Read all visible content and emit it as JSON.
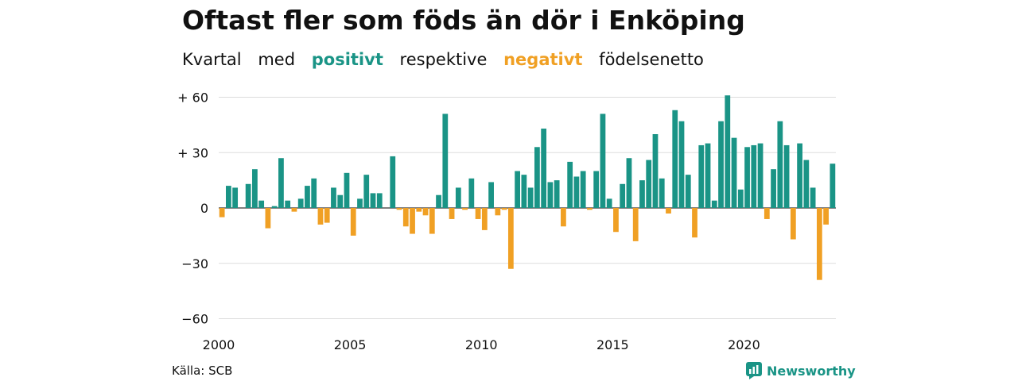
{
  "title": "Oftast fler som föds än dör i Enköping",
  "subtitle": {
    "w1": "Kvartal",
    "w2": "med",
    "positive": "positivt",
    "w3": "respektive",
    "negative": "negativt",
    "w4": "födelsenetto"
  },
  "source": "Källa: SCB",
  "brand": "Newsworthy",
  "colors": {
    "positive": "#1a9486",
    "negative": "#f0a024",
    "grid": "#dddddd"
  },
  "chart_data": {
    "type": "bar",
    "title": "Oftast fler som föds än dör i Enköping",
    "subtitle": "Kvartal med positivt respektive negativt födelsenetto",
    "x_start_year": 2000,
    "periodicity": "quarterly",
    "x_tick_labels": [
      "2000",
      "2005",
      "2010",
      "2015",
      "2020"
    ],
    "y_tick_values": [
      60,
      30,
      0,
      -30,
      -60
    ],
    "y_tick_labels": [
      "+ 60",
      "+ 30",
      "0",
      "−30",
      "−60"
    ],
    "ylim": [
      -65,
      62
    ],
    "grid": true,
    "values": [
      -5,
      12,
      11,
      0,
      13,
      21,
      4,
      -11,
      1,
      27,
      4,
      -2,
      5,
      12,
      16,
      -9,
      -8,
      11,
      7,
      19,
      -15,
      5,
      18,
      8,
      8,
      0,
      28,
      -1,
      -10,
      -14,
      -2,
      -4,
      -14,
      7,
      51,
      -6,
      11,
      -1,
      16,
      -6,
      -12,
      14,
      -4,
      -1,
      -33,
      20,
      18,
      11,
      33,
      43,
      14,
      15,
      -10,
      25,
      17,
      20,
      -1,
      20,
      51,
      5,
      -13,
      13,
      27,
      -18,
      15,
      26,
      40,
      16,
      -3,
      53,
      47,
      18,
      -16,
      34,
      35,
      4,
      47,
      61,
      38,
      10,
      33,
      34,
      35,
      -6,
      21,
      47,
      34,
      -17,
      35,
      26,
      11,
      -39,
      -9,
      24
    ]
  }
}
